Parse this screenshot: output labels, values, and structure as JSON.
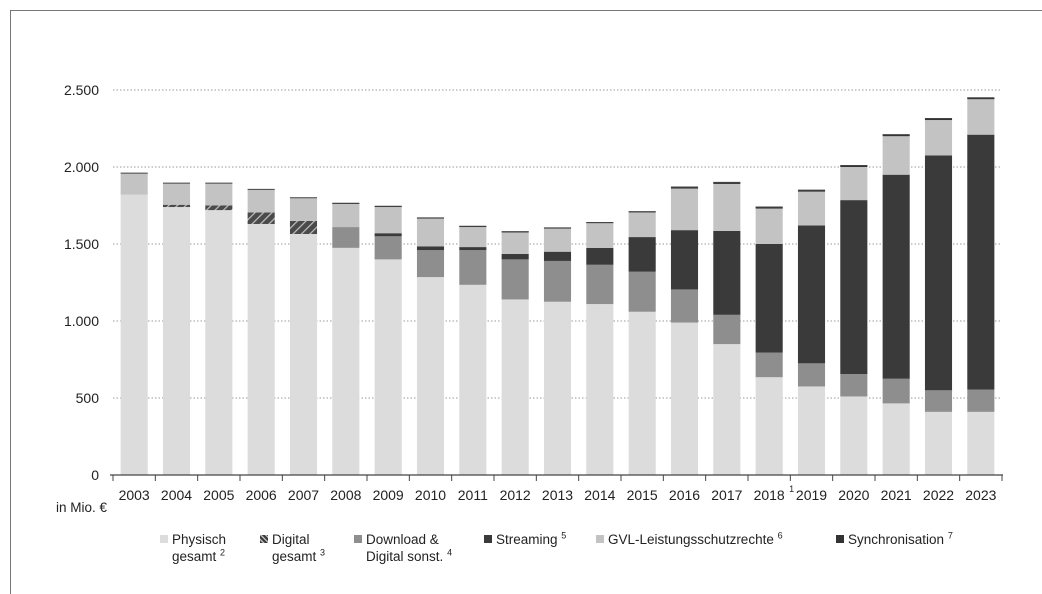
{
  "chart_data": {
    "type": "bar",
    "stacked": true,
    "unit_label": "in Mio. €",
    "categories": [
      "2003",
      "2004",
      "2005",
      "2006",
      "2007",
      "2008",
      "2009",
      "2010",
      "2011",
      "2012",
      "2013",
      "2014",
      "2015",
      "2016",
      "2017",
      "2018",
      "2019",
      "2020",
      "2021",
      "2022",
      "2023"
    ],
    "category_notes": {
      "2018": "1"
    },
    "ylim": [
      0,
      2500
    ],
    "yticks": [
      {
        "value": 0,
        "label": "0"
      },
      {
        "value": 500,
        "label": "500"
      },
      {
        "value": 1000,
        "label": "1.000"
      },
      {
        "value": 1500,
        "label": "1.500"
      },
      {
        "value": 2000,
        "label": "2.000"
      },
      {
        "value": 2500,
        "label": "2.500"
      }
    ],
    "grid": "horizontal dotted",
    "legend_position": "bottom",
    "series": [
      {
        "key": "physisch",
        "name_lines": [
          "Physisch",
          "gesamt"
        ],
        "note": "2",
        "color": "#dcdcdc",
        "pattern": "solid",
        "values": [
          1820,
          1740,
          1720,
          1630,
          1565,
          1475,
          1400,
          1285,
          1235,
          1140,
          1125,
          1110,
          1060,
          990,
          850,
          635,
          575,
          510,
          465,
          410,
          410
        ]
      },
      {
        "key": "digital",
        "name_lines": [
          "Digital",
          "gesamt"
        ],
        "note": "3",
        "color": "#6d6d6d",
        "pattern": "hatch",
        "values": [
          0,
          15,
          30,
          75,
          85,
          0,
          0,
          0,
          0,
          0,
          0,
          0,
          0,
          0,
          0,
          0,
          0,
          0,
          0,
          0,
          0
        ]
      },
      {
        "key": "download",
        "name_lines": [
          "Download &",
          "Digital sonst."
        ],
        "note": "4",
        "color": "#8e8e8e",
        "pattern": "solid",
        "values": [
          0,
          0,
          0,
          0,
          0,
          135,
          150,
          175,
          225,
          260,
          265,
          255,
          260,
          215,
          190,
          160,
          150,
          145,
          160,
          140,
          145
        ]
      },
      {
        "key": "streaming",
        "name_lines": [
          "Streaming"
        ],
        "note": "5",
        "color": "#3a3a3a",
        "pattern": "solid",
        "values": [
          0,
          0,
          0,
          0,
          0,
          0,
          20,
          25,
          20,
          35,
          60,
          110,
          225,
          385,
          545,
          705,
          895,
          1130,
          1325,
          1525,
          1655
        ]
      },
      {
        "key": "gvl",
        "name_lines": [
          "GVL-Leistungsschutzrechte"
        ],
        "note": "6",
        "color": "#c3c3c3",
        "pattern": "solid",
        "values": [
          140,
          140,
          145,
          150,
          150,
          150,
          170,
          180,
          130,
          140,
          150,
          160,
          160,
          270,
          305,
          230,
          220,
          215,
          250,
          230,
          230
        ]
      },
      {
        "key": "sync",
        "name_lines": [
          "Synchronisation"
        ],
        "note": "7",
        "color": "#333333",
        "pattern": "solid",
        "values": [
          0,
          0,
          0,
          0,
          0,
          5,
          5,
          5,
          5,
          5,
          5,
          5,
          5,
          10,
          10,
          10,
          10,
          10,
          10,
          10,
          10
        ]
      }
    ]
  }
}
